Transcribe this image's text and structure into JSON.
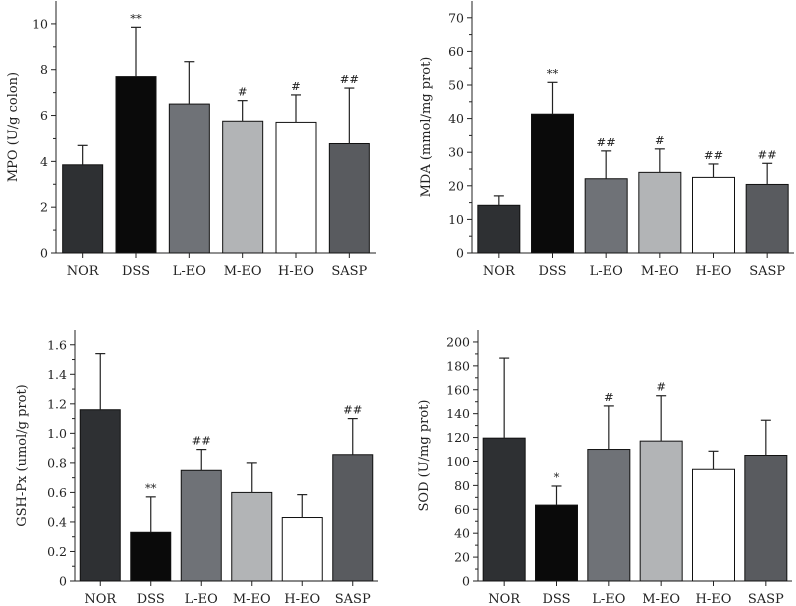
{
  "chart_data": [
    {
      "type": "bar",
      "ylabel": "MPO (U/g colon)",
      "ylim": [
        0,
        11
      ],
      "yticks": [
        0,
        2,
        4,
        6,
        8,
        10
      ],
      "categories": [
        "NOR",
        "DSS",
        "L-EO",
        "M-EO",
        "H-EO",
        "SASP"
      ],
      "values": [
        3.85,
        7.7,
        6.5,
        5.75,
        5.7,
        4.78
      ],
      "errors": [
        0.85,
        2.15,
        1.85,
        0.9,
        1.2,
        2.42
      ],
      "significance": [
        "",
        "**",
        "",
        "#",
        "#",
        "##"
      ],
      "colors": [
        "#2e3033",
        "#0a0a0a",
        "#6f7277",
        "#b2b4b6",
        "#ffffff",
        "#595b5f"
      ]
    },
    {
      "type": "bar",
      "ylabel": "MDA (mmol/mg prot)",
      "ylim": [
        0,
        75
      ],
      "yticks": [
        0,
        10,
        20,
        30,
        40,
        50,
        60,
        70
      ],
      "categories": [
        "NOR",
        "DSS",
        "L-EO",
        "M-EO",
        "H-EO",
        "SASP"
      ],
      "values": [
        14.2,
        41.3,
        22.1,
        24.0,
        22.5,
        20.4
      ],
      "errors": [
        2.8,
        9.5,
        8.3,
        7.0,
        4.0,
        6.3
      ],
      "significance": [
        "",
        "**",
        "##",
        "#",
        "##",
        "##"
      ],
      "colors": [
        "#2e3033",
        "#0a0a0a",
        "#6f7277",
        "#b2b4b6",
        "#ffffff",
        "#595b5f"
      ]
    },
    {
      "type": "bar",
      "ylabel": "GSH-Px (umol/g prot)",
      "ylim": [
        0,
        1.7
      ],
      "yticks": [
        "0",
        "0.2",
        "0.4",
        "0.6",
        "0.8",
        "1.0",
        "1.2",
        "1.4",
        "1.6"
      ],
      "categories": [
        "NOR",
        "DSS",
        "L-EO",
        "M-EO",
        "H-EO",
        "SASP"
      ],
      "values": [
        1.16,
        0.33,
        0.75,
        0.6,
        0.43,
        0.855
      ],
      "errors": [
        0.38,
        0.24,
        0.14,
        0.2,
        0.155,
        0.245
      ],
      "significance": [
        "",
        "**",
        "##",
        "",
        "",
        "##"
      ],
      "colors": [
        "#2e3033",
        "#0a0a0a",
        "#6f7277",
        "#b2b4b6",
        "#ffffff",
        "#595b5f"
      ]
    },
    {
      "type": "bar",
      "ylabel": "SOD (U/mg prot)",
      "ylim": [
        0,
        210
      ],
      "yticks": [
        0,
        20,
        40,
        60,
        80,
        100,
        120,
        140,
        160,
        180,
        200
      ],
      "categories": [
        "NOR",
        "DSS",
        "L-EO",
        "M-EO",
        "H-EO",
        "SASP"
      ],
      "values": [
        119.5,
        63.5,
        110.0,
        117.0,
        93.5,
        105.0
      ],
      "errors": [
        67.0,
        16.0,
        36.5,
        38.0,
        15.0,
        29.5
      ],
      "significance": [
        "",
        "*",
        "#",
        "#",
        "",
        ""
      ],
      "colors": [
        "#2e3033",
        "#0a0a0a",
        "#6f7277",
        "#b2b4b6",
        "#ffffff",
        "#595b5f"
      ]
    }
  ]
}
